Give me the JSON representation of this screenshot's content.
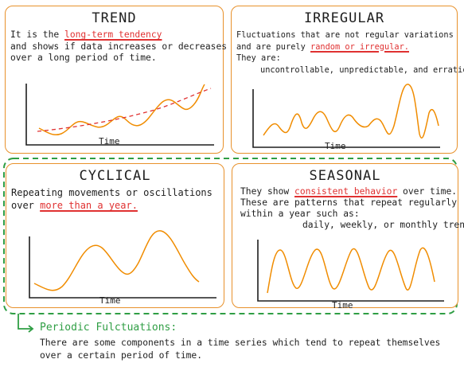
{
  "trend": {
    "title": "TREND",
    "line1_pre": "It is the ",
    "line1_highlight": "long-term tendency",
    "line2": "and shows if data increases or decreases",
    "line3": "over a long period of time.",
    "axis_label": "Time"
  },
  "irregular": {
    "title": "IRREGULAR",
    "line1": "Fluctuations that are not regular variations",
    "line2_pre": "and are purely ",
    "line2_highlight": "random or irregular.",
    "line3": "They are:",
    "line4": "uncontrollable, unpredictable, and erratic.",
    "axis_label": "Time"
  },
  "cyclical": {
    "title": "CYCLICAL",
    "line1": "Repeating movements or oscillations",
    "line2_pre": "over ",
    "line2_highlight": "more than a year.",
    "axis_label": "Time"
  },
  "seasonal": {
    "title": "SEASONAL",
    "line1_pre": "They show ",
    "line1_highlight": "consistent behavior",
    "line1_post": " over time.",
    "line2": "These are patterns that repeat regularly",
    "line3": "within a year such as:",
    "line4": "daily, weekly, or monthly trends",
    "axis_label": "Time"
  },
  "footer": {
    "title": "Periodic Fulctuations:",
    "line1": "There are some components in a time series which tend to repeat themselves",
    "line2": "over a certain period of time."
  },
  "colors": {
    "card_border": "#e8912b",
    "curve": "#f08c00",
    "trend_dashed": "#e03131",
    "highlight": "#e03131",
    "group_outline": "#2f9e44"
  }
}
